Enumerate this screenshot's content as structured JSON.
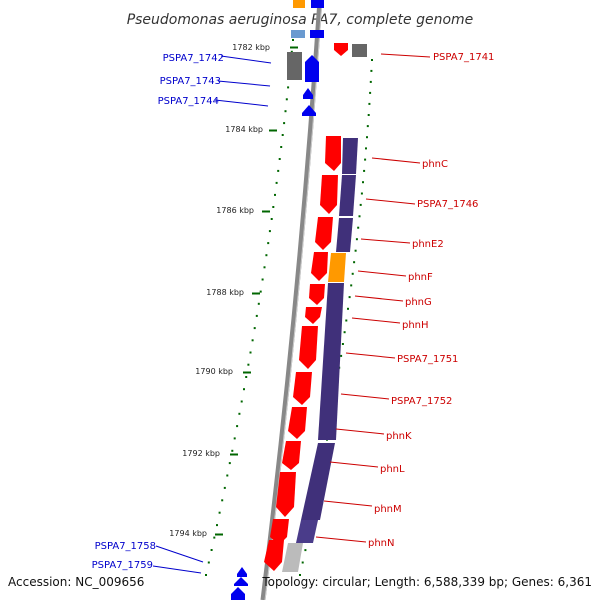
{
  "title": "Pseudomonas aeruginosa PA7, complete genome",
  "footer": {
    "accession": "Accession: NC_009656",
    "topology": "Topology: circular; Length: 6,588,339 bp; Genes: 6,361"
  },
  "colors": {
    "forward": "#0000ee",
    "reverse": "#ff0000",
    "category_purple": "#40307a",
    "category_orange": "#ff9900",
    "other": "#666666",
    "ruler": "#006600",
    "backbone": "#888888"
  },
  "ruler": {
    "unit": "kbp",
    "ticks": [
      {
        "label": "1782 kbp"
      },
      {
        "label": "1784 kbp"
      },
      {
        "label": "1786 kbp"
      },
      {
        "label": "1788 kbp"
      },
      {
        "label": "1790 kbp"
      },
      {
        "label": "1792 kbp"
      },
      {
        "label": "1794 kbp"
      }
    ]
  },
  "genes_forward": [
    {
      "label": "PSPA7_1742"
    },
    {
      "label": "PSPA7_1743"
    },
    {
      "label": "PSPA7_1744"
    },
    {
      "label": "PSPA7_1758"
    },
    {
      "label": "PSPA7_1759"
    }
  ],
  "genes_reverse": [
    {
      "label": "PSPA7_1741"
    },
    {
      "label": "phnC"
    },
    {
      "label": "PSPA7_1746"
    },
    {
      "label": "phnE2"
    },
    {
      "label": "phnF"
    },
    {
      "label": "phnG"
    },
    {
      "label": "phnH"
    },
    {
      "label": "PSPA7_1751"
    },
    {
      "label": "PSPA7_1752"
    },
    {
      "label": "phnK"
    },
    {
      "label": "phnL"
    },
    {
      "label": "phnM"
    },
    {
      "label": "phnN"
    }
  ]
}
